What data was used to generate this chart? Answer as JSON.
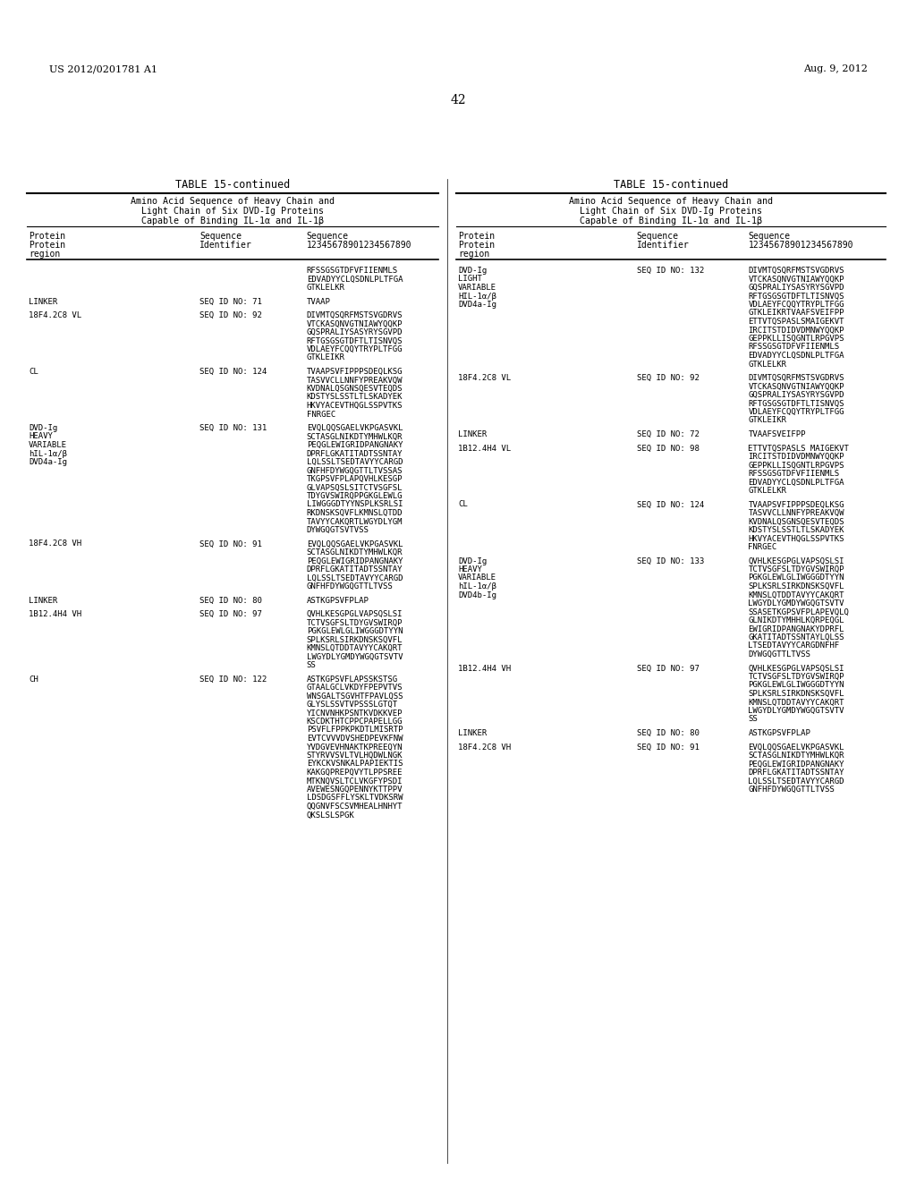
{
  "page_header_left": "US 2012/0201781 A1",
  "page_header_right": "Aug. 9, 2012",
  "page_number": "42",
  "table_title": "TABLE 15-continued",
  "table_subtitle_line1": "Amino Acid Sequence of Heavy Chain and",
  "table_subtitle_line2": "Light Chain of Six DVD-Ig Proteins",
  "table_subtitle_line3": "Capable of Binding IL-1α and IL-1β",
  "col_headers": [
    "Protein\nProtein\nregion",
    "Sequence\nIdentifier",
    "Sequence\n12345678901234567890"
  ],
  "left_table_rows": [
    {
      "region": "",
      "identifier": "",
      "sequence": "RFSSGSGTDFVFIIENMLS\nEDVADYYCLQSDNLPLTFGA\nGTKLELKR"
    },
    {
      "region": "LINKER",
      "identifier": "SEQ ID NO: 71",
      "sequence": "TVAAP"
    },
    {
      "region": "18F4.2C8 VL",
      "identifier": "SEQ ID NO: 92",
      "sequence": "DIVMTQSQRFMSTSVGDRVS\nVTCKASQNVGTNIAWYQQKP\nGQSPRALIYSASYRYSGVPD\nRFTGSGSGTDFTLTISNVQS\nVDLAEYFCQQYTRYPLTFGG\nGTKLEIKR"
    },
    {
      "region": "CL",
      "identifier": "SEQ ID NO: 124",
      "sequence": "TVAAPSVFIPPPSDEQLKSG\nTASVVCLLNNFYPREAKVQW\nKVDNALQSGNSQESVTEQDS\nKDSTYSLSSTLTLSKADYEK\nHKVYACEVTHQGLSSPVTKS\nFNRGEC"
    },
    {
      "region": "DVD-Ig\nHEAVY\nVARIABLE\nhIL-1α/β\nDVD4a-Ig",
      "identifier": "SEQ ID NO: 131",
      "sequence": "EVQLQQSGAELVKPGASVKL\nSCTASGLNIKDTYMHWLKQR\nPEQGLEWIGRIDPANGNAKY\nDPRFLGKATITADTSSNTAY\nLQLSSLTSEDTAVYYCARGD\nGNFHFDYWGQGTTLTVSSAS\nTKGPSVFPLAPQVHLKESGP\nGLVAPSQSLSITCTVSGFSL\nTDYGVSWIRQPPGKGLEWLG\nLIWGGGDTYYNSPLKSRLSI\nRKDNSKSQVFLKMNSLQTDD\nTAVYYCAKQRTLWGYDLYGM\nDYWGQGTSVTVSS"
    },
    {
      "region": "18F4.2C8 VH",
      "identifier": "SEQ ID NO: 91",
      "sequence": "EVQLQQSGAELVKPGASVKL\nSCTASGLNIKDTYMHWLKQR\nPEQGLEWIGRIDPANGNAKY\nDPRFLGKATITADTSSNTAY\nLQLSSLTSEDTAVYYCARGD\nGNFHFDYWGQGTTLTVSS"
    },
    {
      "region": "LINKER",
      "identifier": "SEQ ID NO: 80",
      "sequence": "ASTKGPSVFPLAP"
    },
    {
      "region": "1B12.4H4 VH",
      "identifier": "SEQ ID NO: 97",
      "sequence": "QVHLKESGPGLVAPSQSLSI\nTCTVSGFSLTDYGVSWIRQP\nPGKGLEWLGLIWGGGDTYYN\nSPLKSRLSIRKDNSKSQVFL\nKMNSLQTDDTAVYYCAKQRT\nLWGYDLYGMDYWGQGTSVTV\nSS"
    },
    {
      "region": "CH",
      "identifier": "SEQ ID NO: 122",
      "sequence": "ASTKGPSVFLAPSSKSTSG\nGTAALGCLVKDYFPEPVTVS\nWNSGALTSGVHTFPAVLQSS\nGLYSLSSVTVPSSSLGTQT\nYICNVNHKPSNTKVDKKVEP\nKSCDKTHTCPPCPAPELLGG\nPSVFLFPPKPKDTLMISRTP\nEVTCVVVDVSHEDPEVKFNW\nYVDGVEVHNAKTKPREEQYN\nSTYRVVSVLTVLHQDWLNGK\nEYKCKVSNKALPAPIEKTIS\nKAKGQPREPQVYTLPPSREE\nMTKNQVSLTCLVKGFYPSDI\nAVEWESNGQPENNYKTTPPV\nLDSDGSFFLYSKLTVDKSRW\nQQGNVFSCSVMHEALHNHYT\nQKSLSLSPGK"
    }
  ],
  "right_table_rows": [
    {
      "region": "DVD-Ig\nLIGHT\nVARIABLE\nHIL-1α/β\nDVD4a-Ig",
      "identifier": "SEQ ID NO: 132",
      "sequence": "DIVMTQSQRFMSTSVGDRVS\nVTCKASQNVGTNIAWYQQKP\nGQSPRALIYSASYRYSGVPD\nRFTGSGSGTDFTLTISNVQS\nVDLAEYFCQQYTRYPLTFGG\nGTKLEIKRTVAAFSVEIFPP\nETTVTQSPASLSMAIGEKVT\nIRCITSTDIDVDMNWYQQKP\nGEPPKLLISQGNTLRPGVPS\nRFSSGSGTDFVFIIENMLS\nEDVADYYCLQSDNLPLTFGA\nGTKLELKR"
    },
    {
      "region": "18F4.2C8 VL",
      "identifier": "SEQ ID NO: 92",
      "sequence": "DIVMTQSQRFMSTSVGDRVS\nVTCKASQNVGTNIAWYQQKP\nGQSPRALIYSASYRYSGVPD\nRFTGSGSGTDFTLTISNVQS\nVDLAEYFCQQYTRYPLTFGG\nGTKLEIKR"
    },
    {
      "region": "LINKER",
      "identifier": "SEQ ID NO: 72",
      "sequence": "TVAAFSVEIFPP"
    },
    {
      "region": "1B12.4H4 VL",
      "identifier": "SEQ ID NO: 98",
      "sequence": "ETTVTQSPASLS MAIGEKVT\nIRCITSTDIDVDMNWYQQKP\nGEPPKLLISQGNTLRPGVPS\nRFSSGSGTDFVFIIENMLS\nEDVADYYCLQSDNLPLTFGA\nGTKLELKR"
    },
    {
      "region": "CL",
      "identifier": "SEQ ID NO: 124",
      "sequence": "TVAAPSVFIPPPSDEQLKSG\nTASVVCLLNNFYPREAKVQW\nKVDNALQSGNSQESVTEQDS\nKDSTYSLSSTLTLSKADYEK\nHKVYACEVTHQGLSSPVTKS\nFNRGEC"
    },
    {
      "region": "DVD-Ig\nHEAVY\nVARIABLE\nhIL-1α/β\nDVD4b-Ig",
      "identifier": "SEQ ID NO: 133",
      "sequence": "QVHLKESGPGLVAPSQSLSI\nTCTVSGFSLTDYGVSWIRQP\nPGKGLEWLGLIWGGGDTYYN\nSPLKSRLSIRKDNSKSQVFL\nKMNSLQTDDTAVYYCAKQRT\nLWGYDLYGMDYWGQGTSVTV\nSSASETKGPSVFPLAPEVQLQ\nGLNIKDTYMHHLKQRPEQGL\nEWIGRIDPANGNAKYDPRFL\nGKATITADTSSNTAYLQLSS\nLTSEDTAVYYCARGDNFHF\nDYWGQGTTLTVSS"
    },
    {
      "region": "1B12.4H4 VH",
      "identifier": "SEQ ID NO: 97",
      "sequence": "QVHLKESGPGLVAPSQSLSI\nTCTVSGFSLTDYGVSWIRQP\nPGKGLEWLGLIWGGGDTYYN\nSPLKSRLSIRKDNSKSQVFL\nKMNSLQTDDTAVYYCAKQRT\nLWGYDLYGMDYWGQGTSVTV\nSS"
    },
    {
      "region": "LINKER",
      "identifier": "SEQ ID NO: 80",
      "sequence": "ASTKGPSVFPLAP"
    },
    {
      "region": "18F4.2C8 VH",
      "identifier": "SEQ ID NO: 91",
      "sequence": "EVQLQQSGAELVKPGASVKL\nSCTASGLNIKDTYMHWLKQR\nPEQGLEWIGRIDPANGNAKY\nDPRFLGKATITADTSSNTAY\nLQLSSLTSEDTAVYYCARGD\nGNFHFDYWGQGTTLTVSS"
    }
  ],
  "background_color": "#ffffff",
  "text_color": "#000000",
  "font_family": "monospace",
  "header_font_size": 7.5,
  "body_font_size": 6.5,
  "title_font_size": 8.5
}
